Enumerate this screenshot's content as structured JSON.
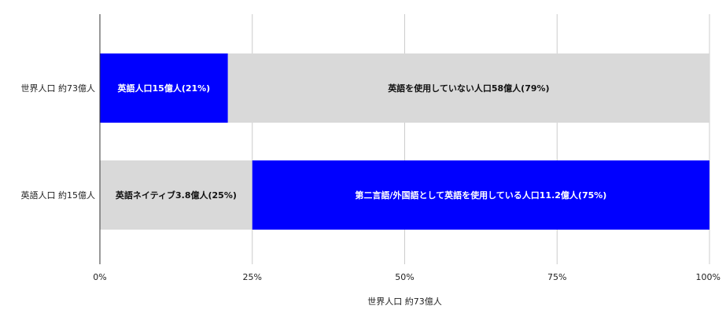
{
  "chart_data": {
    "type": "bar",
    "orientation": "horizontal",
    "stacked": "percent",
    "categories": [
      "世界人口 約73億人",
      "英語人口 約15億人"
    ],
    "segments": [
      [
        {
          "value": 21,
          "label": "英語人口15億人(21%)",
          "color": "#0000ff",
          "text_color": "#ffffff"
        },
        {
          "value": 79,
          "label": "英語を使用していない人口58億人(79%)",
          "color": "#d9d9d9",
          "text_color": "#111111"
        }
      ],
      [
        {
          "value": 25,
          "label": "英語ネイティブ3.8億人(25%)",
          "color": "#d9d9d9",
          "text_color": "#111111"
        },
        {
          "value": 75,
          "label": "第二言語/外国語として英語を使用している人口11.2億人(75%)",
          "color": "#0000ff",
          "text_color": "#ffffff"
        }
      ]
    ],
    "xlim": [
      0,
      100
    ],
    "xticks": [
      0,
      25,
      50,
      75,
      100
    ],
    "xtick_labels": [
      "0%",
      "25%",
      "50%",
      "75%",
      "100%"
    ],
    "xlabel": "世界人口 約73億人",
    "grid": true
  }
}
